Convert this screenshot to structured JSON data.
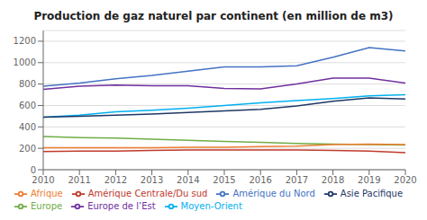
{
  "chart_data": {
    "type": "line",
    "title": "Production de gaz naturel par continent (en million de m3)",
    "x": [
      2010,
      2011,
      2012,
      2013,
      2014,
      2015,
      2016,
      2017,
      2018,
      2019,
      2020
    ],
    "series": [
      {
        "name": "Amérique du Nord",
        "color": "#4472C4",
        "values": [
          780,
          810,
          850,
          880,
          920,
          960,
          960,
          970,
          1050,
          1140,
          1110
        ]
      },
      {
        "name": "Amérique Centrale/Du sud",
        "color": "#C0392B",
        "values": [
          170,
          175,
          175,
          180,
          185,
          185,
          185,
          185,
          180,
          175,
          160
        ]
      },
      {
        "name": "Europe",
        "color": "#70AD47",
        "values": [
          310,
          300,
          295,
          285,
          275,
          265,
          255,
          245,
          240,
          235,
          230
        ]
      },
      {
        "name": "Europe de l’Est",
        "color": "#7030A0",
        "values": [
          750,
          780,
          790,
          785,
          785,
          760,
          755,
          800,
          855,
          855,
          810
        ]
      },
      {
        "name": "Moyen-Orient",
        "color": "#00B0F0",
        "values": [
          490,
          510,
          540,
          555,
          575,
          600,
          625,
          645,
          665,
          690,
          700
        ]
      },
      {
        "name": "Afrique",
        "color": "#ED7D31",
        "values": [
          205,
          205,
          205,
          205,
          210,
          210,
          215,
          220,
          235,
          240,
          235
        ]
      },
      {
        "name": "Asie Pacifique",
        "color": "#1F3864",
        "values": [
          490,
          500,
          510,
          520,
          535,
          550,
          565,
          595,
          640,
          670,
          660
        ]
      }
    ],
    "xlim": [
      2010,
      2020
    ],
    "xticks": [
      2010,
      2011,
      2012,
      2013,
      2014,
      2015,
      2016,
      2017,
      2018,
      2019,
      2020
    ],
    "ylim": [
      0,
      1300
    ],
    "yticks": [
      0,
      200,
      400,
      600,
      800,
      1000,
      1200
    ],
    "grid": true,
    "legend": "bottom"
  }
}
